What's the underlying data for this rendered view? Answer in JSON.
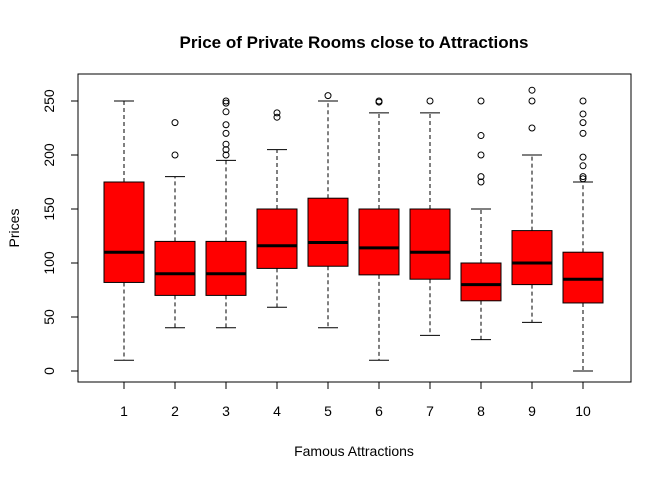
{
  "chart_data": {
    "type": "boxplot",
    "title": "Price of Private Rooms close to Attractions",
    "xlabel": "Famous Attractions",
    "ylabel": "Prices",
    "categories": [
      "1",
      "2",
      "3",
      "4",
      "5",
      "6",
      "7",
      "8",
      "9",
      "10"
    ],
    "yticks": [
      "0",
      "50",
      "100",
      "150",
      "200",
      "250"
    ],
    "ylim": [
      -10,
      260
    ],
    "box_color": "#ff0000",
    "boxes": [
      {
        "min": 10,
        "q1": 82,
        "median": 110,
        "q3": 175,
        "max": 250,
        "outliers": []
      },
      {
        "min": 40,
        "q1": 70,
        "median": 90,
        "q3": 120,
        "max": 180,
        "outliers": [
          200,
          230
        ]
      },
      {
        "min": 40,
        "q1": 70,
        "median": 90,
        "q3": 120,
        "max": 195,
        "outliers": [
          200,
          205,
          210,
          220,
          228,
          240,
          248,
          250
        ]
      },
      {
        "min": 59,
        "q1": 95,
        "median": 116,
        "q3": 150,
        "max": 205,
        "outliers": [
          235,
          239
        ]
      },
      {
        "min": 40,
        "q1": 97,
        "median": 119,
        "q3": 160,
        "max": 250,
        "outliers": [
          255
        ]
      },
      {
        "min": 10,
        "q1": 89,
        "median": 114,
        "q3": 150,
        "max": 239,
        "outliers": [
          249,
          250
        ]
      },
      {
        "min": 33,
        "q1": 85,
        "median": 110,
        "q3": 150,
        "max": 239,
        "outliers": [
          250
        ]
      },
      {
        "min": 29,
        "q1": 65,
        "median": 80,
        "q3": 100,
        "max": 150,
        "outliers": [
          175,
          180,
          200,
          218,
          250
        ]
      },
      {
        "min": 45,
        "q1": 80,
        "median": 100,
        "q3": 130,
        "max": 200,
        "outliers": [
          225,
          250,
          260
        ]
      },
      {
        "min": 0,
        "q1": 63,
        "median": 85,
        "q3": 110,
        "max": 175,
        "outliers": [
          178,
          180,
          190,
          198,
          220,
          230,
          238,
          250
        ]
      }
    ]
  }
}
